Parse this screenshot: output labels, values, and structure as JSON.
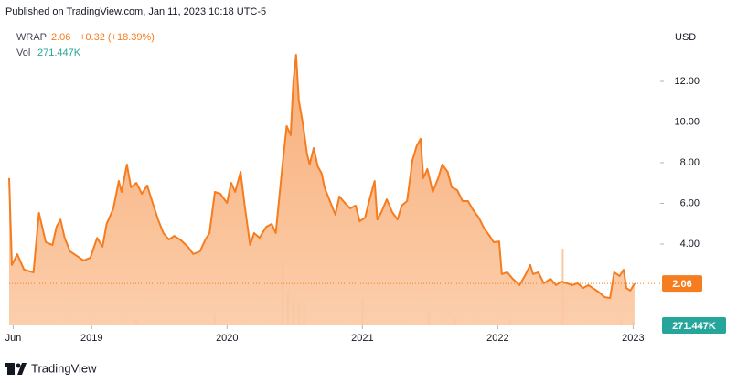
{
  "header": {
    "published": "Published on TradingView.com, Jan 11, 2023 10:18 UTC-5"
  },
  "footer": {
    "brand": "TradingView"
  },
  "chart_data": {
    "type": "area",
    "symbol": "WRAP",
    "last_price_label": "2.06",
    "change_label": "+0.32 (+18.39%)",
    "volume_title": "Vol",
    "last_volume_label": "271.447K",
    "currency": "USD",
    "xlim": [
      2018.39,
      2023.2
    ],
    "xticks": [
      {
        "value": 2018.42,
        "label": "Jun"
      },
      2019,
      2020,
      2021,
      2022,
      2023
    ],
    "ylim": [
      0,
      14.65
    ],
    "yticks": [
      {
        "value": 4,
        "label": "4.00"
      },
      {
        "value": 6,
        "label": "6.00"
      },
      {
        "value": 8,
        "label": "8.00"
      },
      {
        "value": 10,
        "label": "10.00"
      },
      {
        "value": 12,
        "label": "12.00"
      }
    ],
    "grid": false,
    "series": [
      {
        "name": "WRAP",
        "color": "#f57c1f",
        "x": [
          2018.39,
          2018.41,
          2018.45,
          2018.5,
          2018.57,
          2018.61,
          2018.66,
          2018.71,
          2018.74,
          2018.77,
          2018.8,
          2018.84,
          2018.89,
          2018.94,
          2018.99,
          2019.04,
          2019.08,
          2019.11,
          2019.16,
          2019.2,
          2019.22,
          2019.26,
          2019.29,
          2019.33,
          2019.37,
          2019.41,
          2019.45,
          2019.49,
          2019.53,
          2019.57,
          2019.61,
          2019.66,
          2019.71,
          2019.75,
          2019.8,
          2019.84,
          2019.87,
          2019.91,
          2019.95,
          2020.0,
          2020.03,
          2020.06,
          2020.1,
          2020.13,
          2020.17,
          2020.2,
          2020.24,
          2020.29,
          2020.33,
          2020.36,
          2020.41,
          2020.44,
          2020.47,
          2020.49,
          2020.51,
          2020.53,
          2020.56,
          2020.59,
          2020.61,
          2020.64,
          2020.67,
          2020.7,
          2020.72,
          2020.76,
          2020.8,
          2020.83,
          2020.87,
          2020.91,
          2020.95,
          2020.98,
          2021.02,
          2021.05,
          2021.09,
          2021.11,
          2021.14,
          2021.18,
          2021.22,
          2021.26,
          2021.29,
          2021.33,
          2021.37,
          2021.4,
          2021.43,
          2021.45,
          2021.48,
          2021.52,
          2021.56,
          2021.59,
          2021.63,
          2021.66,
          2021.7,
          2021.74,
          2021.78,
          2021.82,
          2021.86,
          2021.9,
          2021.94,
          2021.97,
          2022.01,
          2022.03,
          2022.07,
          2022.11,
          2022.16,
          2022.2,
          2022.24,
          2022.26,
          2022.3,
          2022.34,
          2022.39,
          2022.43,
          2022.47,
          2022.51,
          2022.55,
          2022.59,
          2022.63,
          2022.67,
          2022.71,
          2022.75,
          2022.79,
          2022.83,
          2022.86,
          2022.9,
          2022.93,
          2022.95,
          2022.98,
          2023.01
        ],
        "values": [
          7.24,
          2.97,
          3.5,
          2.74,
          2.6,
          5.53,
          4.1,
          3.95,
          4.85,
          5.2,
          4.3,
          3.64,
          3.42,
          3.19,
          3.33,
          4.3,
          3.87,
          4.99,
          5.75,
          7.1,
          6.56,
          7.91,
          6.79,
          7.01,
          6.47,
          6.88,
          6.02,
          5.21,
          4.54,
          4.22,
          4.4,
          4.18,
          3.87,
          3.51,
          3.64,
          4.22,
          4.54,
          6.56,
          6.47,
          6.02,
          7.01,
          6.56,
          7.55,
          5.89,
          3.96,
          4.54,
          4.31,
          4.85,
          4.99,
          4.54,
          7.91,
          9.8,
          9.35,
          12.04,
          13.3,
          11.06,
          9.93,
          8.45,
          7.91,
          8.72,
          7.82,
          7.46,
          6.79,
          6.11,
          5.44,
          6.34,
          6.02,
          5.75,
          5.89,
          5.12,
          5.3,
          6.11,
          7.1,
          5.21,
          5.57,
          6.2,
          5.57,
          5.21,
          5.89,
          6.11,
          8.13,
          8.81,
          9.17,
          7.24,
          7.69,
          6.56,
          7.24,
          7.91,
          7.55,
          6.79,
          6.65,
          6.11,
          6.11,
          5.66,
          5.3,
          4.76,
          4.4,
          4.09,
          4.13,
          2.52,
          2.61,
          2.29,
          1.98,
          2.43,
          2.97,
          2.52,
          2.61,
          2.07,
          2.29,
          1.98,
          2.16,
          2.07,
          1.98,
          2.07,
          1.84,
          1.98,
          1.8,
          1.62,
          1.39,
          1.35,
          2.61,
          2.43,
          2.74,
          1.84,
          1.71,
          2.06
        ]
      }
    ],
    "volume": {
      "color": "#f8c9a3",
      "vlim": [
        0,
        16000
      ],
      "x": [
        2019.33,
        2019.91,
        2020.41,
        2020.45,
        2020.49,
        2020.53,
        2020.57,
        2021.0,
        2021.49,
        2021.69,
        2022.09,
        2022.48,
        2022.91,
        2023.0
      ],
      "values": [
        360,
        719,
        4075,
        2277,
        1798,
        1498,
        1318,
        1798,
        899,
        479,
        479,
        5034,
        479,
        271.447
      ]
    }
  }
}
